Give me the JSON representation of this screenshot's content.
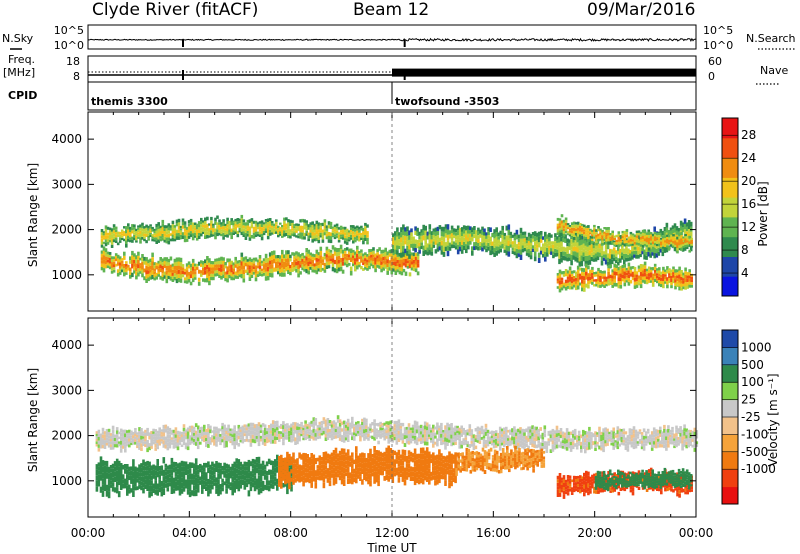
{
  "header": {
    "station": "Clyde River (fitACF)",
    "beam": "Beam 12",
    "date": "09/Mar/2016"
  },
  "strip_labels": {
    "nsky": "N.Sky",
    "nsearch": "N.Search",
    "freq_line1": "Freq.",
    "freq_line2": "[MHz]",
    "nave": "Nave",
    "cpid": "CPID"
  },
  "cpid_entries": [
    {
      "name": "themis 3300",
      "start_time": "00:00"
    },
    {
      "name": "twofsound -3503",
      "start_time": "12:00"
    }
  ],
  "colors": {
    "power_scale": [
      "#0a14e0",
      "#1e46a8",
      "#2f8a4e",
      "#5fb450",
      "#c2d43a",
      "#f2c21a",
      "#f08c10",
      "#f05010",
      "#e81414"
    ],
    "velocity_scale": [
      "#e81010",
      "#f04010",
      "#f07a10",
      "#f5a33a",
      "#f2c28a",
      "#c8c8c8",
      "#7fd14a",
      "#2e8a4a",
      "#3a82b8",
      "#1f4aa8"
    ],
    "trace": "#000000"
  },
  "chart_data": [
    {
      "type": "line",
      "title": "N.Sky / N.Search",
      "x_axis": "Time UT",
      "xlim": [
        "00:00",
        "00:00"
      ],
      "y_tick_labels": [
        "10^0",
        "10^5"
      ],
      "ylim_log10": [
        0,
        5
      ],
      "series": [
        {
          "name": "N.Sky",
          "style": "solid",
          "typical_log10": 1.8
        },
        {
          "name": "N.Search",
          "style": "dotted"
        }
      ],
      "events": [
        {
          "time": "03:45",
          "log10_value": 0
        },
        {
          "time": "12:30",
          "log10_value": 0
        }
      ]
    },
    {
      "type": "line",
      "title": "Freq. / Nave",
      "xlim": [
        "00:00",
        "00:00"
      ],
      "ylabel": "Freq. [MHz]",
      "y_ticks_left": [
        8,
        18
      ],
      "y_ticks_right": [
        0,
        60
      ],
      "series": [
        {
          "name": "Freq.",
          "style": "solid",
          "segments": [
            {
              "start": "00:00",
              "end": "12:00",
              "value_mhz": 10.5
            },
            {
              "start": "12:00",
              "end": "24:00",
              "value_mhz": 12.0
            }
          ]
        },
        {
          "name": "Nave",
          "style": "dotted"
        }
      ]
    },
    {
      "type": "heatmap",
      "title": "Power",
      "xlabel": "",
      "ylabel": "Slant Range [km]",
      "x_ticks": [
        "00:00",
        "04:00",
        "08:00",
        "12:00",
        "16:00",
        "20:00",
        "00:00"
      ],
      "xlim_hours": [
        0,
        24
      ],
      "y_ticks": [
        1000,
        2000,
        3000,
        4000
      ],
      "ylim": [
        200,
        4600
      ],
      "colorbar": {
        "label": "Power [dB]",
        "ticks": [
          4,
          8,
          12,
          16,
          20,
          24,
          28
        ],
        "range": [
          0,
          31
        ]
      },
      "bands": [
        {
          "start_hour": 0.5,
          "end_hour": 13,
          "center_km": [
            1300,
            1050,
            1180,
            1350,
            1280
          ],
          "width_km": 500,
          "peak_db": 26
        },
        {
          "start_hour": 0.5,
          "end_hour": 11,
          "center_km": [
            1850,
            1950,
            2050,
            2000,
            1900
          ],
          "width_km": 400,
          "peak_db": 20
        },
        {
          "start_hour": 12,
          "end_hour": 23.8,
          "center_km": [
            1700,
            1800,
            1650,
            1500,
            1900
          ],
          "width_km": 600,
          "peak_db": 18
        },
        {
          "start_hour": 18.5,
          "end_hour": 23.8,
          "center_km": [
            900,
            950,
            1000,
            900
          ],
          "width_km": 450,
          "peak_db": 28
        },
        {
          "start_hour": 18.5,
          "end_hour": 23.8,
          "center_km": [
            2100,
            1850,
            1750,
            1700
          ],
          "width_km": 350,
          "peak_db": 24
        }
      ]
    },
    {
      "type": "heatmap",
      "title": "Velocity",
      "xlabel": "Time UT",
      "ylabel": "Slant Range [km]",
      "x_ticks": [
        "00:00",
        "04:00",
        "08:00",
        "12:00",
        "16:00",
        "20:00",
        "00:00"
      ],
      "xlim_hours": [
        0,
        24
      ],
      "y_ticks": [
        1000,
        2000,
        3000,
        4000
      ],
      "ylim": [
        200,
        4600
      ],
      "colorbar": {
        "label": "Velocity [m s⁻¹]",
        "ticks": [
          1000,
          500,
          100,
          25,
          -25,
          -100,
          -500,
          -1000
        ]
      },
      "bands": [
        {
          "start_hour": 0.3,
          "end_hour": 8,
          "center_km": [
            1100,
            1050,
            1100,
            1150
          ],
          "width_km": 700,
          "velocity": 60
        },
        {
          "start_hour": 0.3,
          "end_hour": 24,
          "center_km": [
            1900,
            2000,
            2150,
            2000,
            1900,
            1950
          ],
          "width_km": 450,
          "velocity": 0
        },
        {
          "start_hour": 7.5,
          "end_hour": 14.5,
          "center_km": [
            1250,
            1300,
            1350,
            1250
          ],
          "width_km": 700,
          "velocity": -80
        },
        {
          "start_hour": 14.5,
          "end_hour": 18,
          "center_km": [
            1400,
            1500
          ],
          "width_km": 450,
          "velocity": -60
        },
        {
          "start_hour": 18.5,
          "end_hour": 23.8,
          "center_km": [
            900,
            950,
            1000,
            900
          ],
          "width_km": 450,
          "velocity": -110
        },
        {
          "start_hour": 20,
          "end_hour": 23.8,
          "center_km": [
            1000,
            1050
          ],
          "width_km": 350,
          "velocity": 60
        }
      ]
    }
  ]
}
